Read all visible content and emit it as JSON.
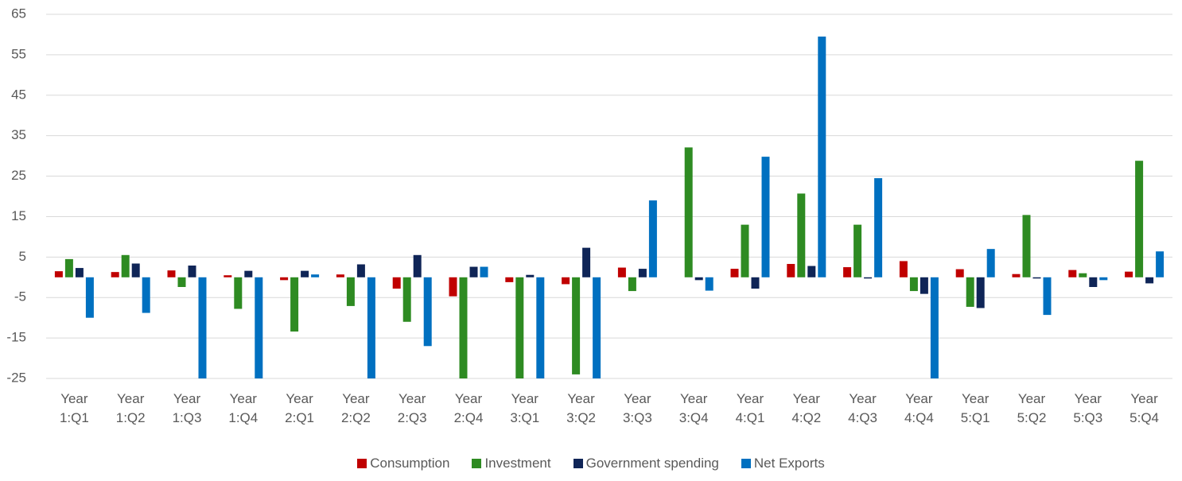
{
  "chart_data": {
    "type": "bar",
    "categories": [
      "Year 1:Q1",
      "Year 1:Q2",
      "Year 1:Q3",
      "Year 1:Q4",
      "Year 2:Q1",
      "Year 2:Q2",
      "Year 2:Q3",
      "Year 2:Q4",
      "Year 3:Q1",
      "Year 3:Q2",
      "Year 3:Q3",
      "Year 3:Q4",
      "Year 4:Q1",
      "Year 4:Q2",
      "Year 4:Q3",
      "Year 4:Q4",
      "Year 5:Q1",
      "Year 5:Q2",
      "Year 5:Q3",
      "Year 5:Q4"
    ],
    "series": [
      {
        "name": "Consumption",
        "color": "#c00000",
        "values": [
          1.5,
          1.3,
          1.7,
          0.5,
          -0.7,
          0.7,
          -2.8,
          -4.7,
          -1.2,
          -1.7,
          2.4,
          0,
          2.1,
          3.3,
          2.5,
          4,
          2,
          0.8,
          1.8,
          1.4
        ]
      },
      {
        "name": "Investment",
        "color": "#2e8b22",
        "values": [
          4.5,
          5.5,
          -2.4,
          -7.8,
          -13.4,
          -7.1,
          -11,
          -25,
          -25,
          -24,
          -3.4,
          32.1,
          13,
          20.7,
          13,
          -3.4,
          -7.3,
          15.4,
          1,
          28.8
        ]
      },
      {
        "name": "Government spending",
        "color": "#0f2557",
        "values": [
          2.3,
          3.4,
          2.9,
          1.6,
          1.6,
          3.2,
          5.5,
          2.6,
          0.6,
          7.3,
          2.1,
          -0.7,
          -2.8,
          2.8,
          -0.3,
          -4.1,
          -7.6,
          -0.3,
          -2.4,
          -1.5
        ]
      },
      {
        "name": "Net Exports",
        "color": "#0070c0",
        "values": [
          -10,
          -8.8,
          -25,
          -25,
          0.7,
          -25,
          -17,
          2.6,
          -25,
          -25,
          19,
          -3.3,
          29.8,
          59.5,
          24.5,
          -25,
          7,
          -9.3,
          -0.7,
          6.4
        ]
      }
    ],
    "ylim": [
      -25,
      65
    ],
    "yticks": [
      -25,
      -15,
      -5,
      5,
      15,
      25,
      35,
      45,
      55,
      65
    ],
    "grid": true,
    "legend": "bottom"
  }
}
